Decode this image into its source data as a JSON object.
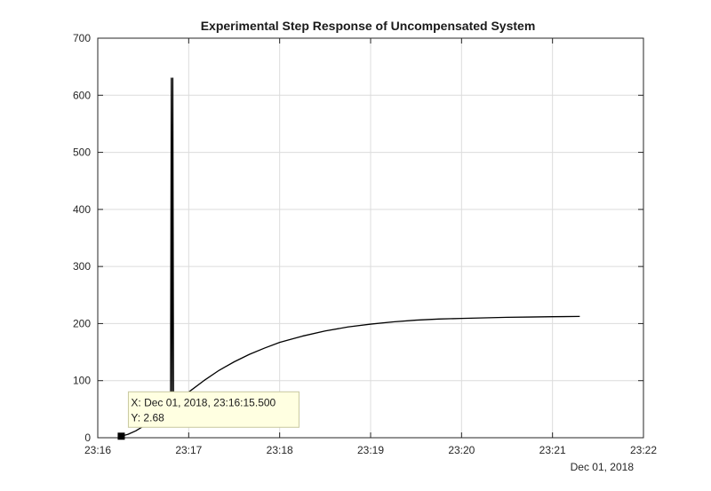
{
  "chart_data": {
    "type": "line",
    "title": "Experimental Step Response of Uncompensated System",
    "xlabel": "",
    "ylabel": "",
    "x_axis_type": "datetime",
    "date_label": "Dec 01, 2018",
    "xlim": [
      "23:16",
      "23:22"
    ],
    "ylim": [
      0,
      700
    ],
    "grid": true,
    "x_ticks": [
      "23:16",
      "23:17",
      "23:18",
      "23:19",
      "23:20",
      "23:21",
      "23:22"
    ],
    "y_ticks": [
      0,
      100,
      200,
      300,
      400,
      500,
      600,
      700
    ],
    "series": [
      {
        "color": "#000000",
        "x": [
          "23:16:15.5",
          "23:16:20",
          "23:16:25",
          "23:16:30",
          "23:16:35",
          "23:16:40",
          "23:16:45",
          "23:16:48",
          "23:16:48.5",
          "23:16:49",
          "23:16:49.5",
          "23:16:50",
          "23:16:50.5",
          "23:16:55",
          "23:17:00",
          "23:17:10",
          "23:17:20",
          "23:17:30",
          "23:17:40",
          "23:17:50",
          "23:18:00",
          "23:18:15",
          "23:18:30",
          "23:18:45",
          "23:19:00",
          "23:19:15",
          "23:19:30",
          "23:19:45",
          "23:20:00",
          "23:20:15",
          "23:20:30",
          "23:20:45",
          "23:21:00",
          "23:21:18"
        ],
        "y": [
          2.68,
          6,
          12,
          20,
          29,
          38,
          46,
          50,
          630,
          50,
          630,
          55,
          58,
          68,
          80,
          100,
          118,
          133,
          146,
          157,
          167,
          178,
          187,
          194,
          199,
          203,
          206,
          208,
          209,
          210,
          211,
          211.5,
          212,
          212.5
        ]
      }
    ],
    "datatip": {
      "x_text": "X: Dec 01, 2018, 23:16:15.500",
      "y_text": "Y: 2.68",
      "x": "23:16:15.5",
      "y": 2.68
    },
    "colors": {
      "line": "#000000",
      "grid": "#dcdcdc",
      "datatip_bg": "#ffffe1",
      "datatip_border": "#c8c8a0"
    }
  }
}
